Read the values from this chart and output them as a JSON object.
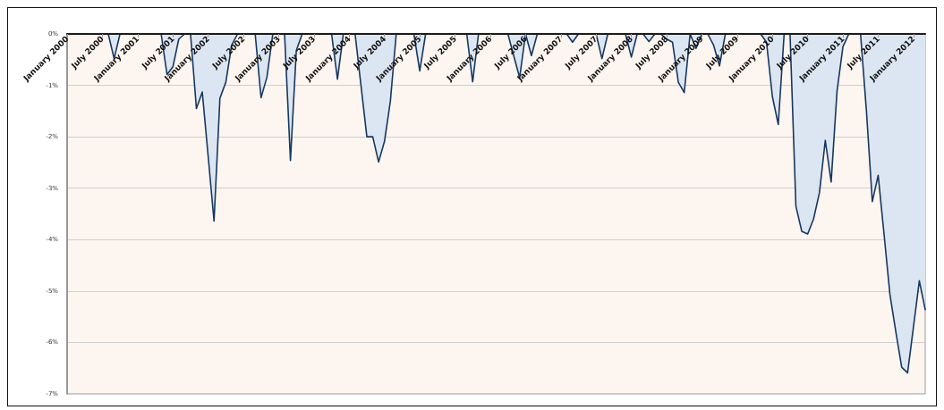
{
  "chart_data": {
    "type": "area",
    "categories": [
      "January 2000",
      null,
      null,
      null,
      null,
      null,
      "July 2000",
      null,
      null,
      null,
      null,
      null,
      "January 2001",
      null,
      null,
      null,
      null,
      null,
      "July 2001",
      null,
      null,
      null,
      null,
      null,
      "January 2002",
      null,
      null,
      null,
      null,
      null,
      "July 2002",
      null,
      null,
      null,
      null,
      null,
      "January 2003",
      null,
      null,
      null,
      null,
      null,
      "July 2003",
      null,
      null,
      null,
      null,
      null,
      "January 2004",
      null,
      null,
      null,
      null,
      null,
      "July 2004",
      null,
      null,
      null,
      null,
      null,
      "January 2005",
      null,
      null,
      null,
      null,
      null,
      "July 2005",
      null,
      null,
      null,
      null,
      null,
      "January 2006",
      null,
      null,
      null,
      null,
      null,
      "July 2006",
      null,
      null,
      null,
      null,
      null,
      "January 2007",
      null,
      null,
      null,
      null,
      null,
      "July 2007",
      null,
      null,
      null,
      null,
      null,
      "January 2008",
      null,
      null,
      null,
      null,
      null,
      "July 2008",
      null,
      null,
      null,
      null,
      null,
      "January 2009",
      null,
      null,
      null,
      null,
      null,
      "July 2009",
      null,
      null,
      null,
      null,
      null,
      "January 2010",
      null,
      null,
      null,
      null,
      null,
      "July 2010",
      null,
      null,
      null,
      null,
      null,
      "January 2011",
      null,
      null,
      null,
      null,
      null,
      "July 2011",
      null,
      null,
      null,
      null,
      null,
      "January 2012",
      null,
      null
    ],
    "series": [
      {
        "color": "#dce6f2",
        "values": [
          0,
          0,
          0,
          0,
          0,
          0,
          0,
          0,
          -0.48,
          0,
          0,
          0,
          0,
          0,
          0,
          0,
          0,
          -0.79,
          -0.64,
          -0.1,
          0,
          0,
          -1.45,
          -1.13,
          -2.38,
          -3.64,
          -1.25,
          -0.94,
          -0.22,
          0,
          0,
          0,
          0,
          -1.24,
          -0.84,
          0,
          0,
          0,
          -2.46,
          -0.32,
          0,
          0,
          0,
          0,
          0,
          0,
          -0.88,
          0,
          0,
          0,
          -1.0,
          -2.0,
          -2.0,
          -2.49,
          -2.09,
          -1.31,
          0,
          0,
          0,
          0,
          -0.72,
          0,
          0,
          0,
          0,
          0,
          0,
          0,
          0,
          -0.93,
          0,
          0,
          0,
          0,
          0,
          0,
          -0.43,
          -0.85,
          0,
          -0.42,
          0,
          0,
          0,
          0,
          0,
          0,
          -0.16,
          0,
          0,
          0,
          0,
          -0.48,
          0,
          0,
          0,
          0,
          -0.45,
          0,
          0,
          -0.15,
          0,
          0,
          -0.1,
          -0.16,
          -0.94,
          -1.14,
          0,
          -0.28,
          0,
          0,
          -0.22,
          -0.62,
          0,
          0,
          0,
          0,
          0,
          0,
          0,
          -0.16,
          -1.22,
          -1.76,
          0,
          0,
          -3.35,
          -3.84,
          -3.89,
          -3.6,
          -3.09,
          -2.07,
          -2.88,
          -1.11,
          -0.25,
          0,
          0,
          0,
          -1.5,
          -3.26,
          -2.75,
          -3.9,
          -5.07,
          -5.79,
          -6.48,
          -6.59,
          -5.7,
          -4.8,
          -5.36
        ]
      }
    ],
    "ylim": [
      -7,
      0
    ],
    "yticks": [
      {
        "value": -7,
        "label": "-7%"
      },
      {
        "value": -6,
        "label": "-6%"
      },
      {
        "value": -5,
        "label": "-5%"
      },
      {
        "value": -4,
        "label": "-4%"
      },
      {
        "value": -3,
        "label": "-3%"
      },
      {
        "value": -2,
        "label": "-2%"
      },
      {
        "value": -1,
        "label": "-1%"
      },
      {
        "value": 0,
        "label": "0%"
      }
    ],
    "grid": "y"
  }
}
